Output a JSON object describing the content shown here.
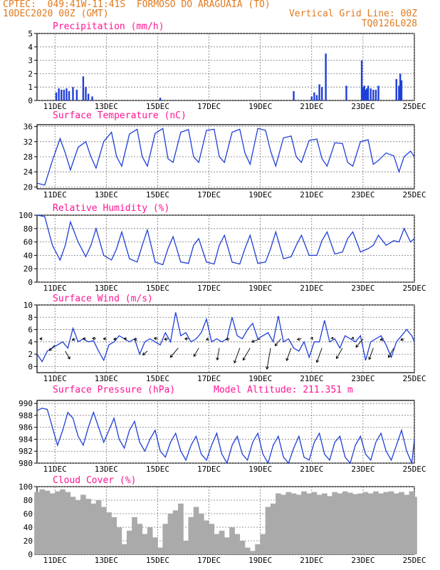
{
  "header": {
    "line1": "CPTEC:  049:41W-11:41S  FORMOSO DO ARAGUAIA (TO)",
    "line2": "10DEC2020 00Z (GMT)",
    "grid_note": "Vertical Grid Line: 00Z",
    "run_id": "TQ0126L028"
  },
  "x_tick_labels": [
    "11DEC",
    "13DEC",
    "15DEC",
    "17DEC",
    "19DEC",
    "21DEC",
    "23DEC",
    "25DEC"
  ],
  "x_tick_days": [
    1,
    3,
    5,
    7,
    9,
    11,
    13,
    15
  ],
  "x_range_days": [
    0.3,
    15
  ],
  "colors": {
    "title": "#ff1493",
    "header": "#e07a1f",
    "line": "#1f3fd8",
    "bar": "#1f3fd8",
    "cloud": "#aaaaaa",
    "axis": "#000000",
    "grid": "#777777"
  },
  "chart_data": [
    {
      "id": "precip",
      "type": "bar",
      "title": "Precipitation (mm/h)",
      "ylim": [
        0,
        5
      ],
      "yticks": [
        0,
        1,
        2,
        3,
        4,
        5
      ],
      "x_units": "days since 10DEC2020 00Z",
      "x": [
        1.05,
        1.15,
        1.25,
        1.35,
        1.45,
        1.55,
        1.7,
        1.85,
        2.1,
        2.2,
        2.3,
        2.45,
        5.1,
        10.3,
        11.0,
        11.1,
        11.2,
        11.3,
        11.4,
        11.55,
        12.35,
        12.95,
        13.0,
        13.05,
        13.1,
        13.15,
        13.2,
        13.3,
        13.4,
        13.5,
        13.6,
        14.3,
        14.4,
        14.45,
        14.5
      ],
      "values": [
        0.6,
        0.9,
        0.8,
        0.8,
        0.9,
        0.7,
        1.0,
        0.8,
        1.8,
        1.0,
        0.5,
        0.3,
        0.2,
        0.7,
        0.3,
        0.6,
        0.4,
        1.2,
        1.0,
        3.5,
        1.1,
        3.0,
        1.0,
        1.1,
        0.8,
        0.9,
        1.1,
        0.9,
        0.8,
        0.8,
        1.1,
        1.6,
        1.1,
        2.0,
        1.5
      ]
    },
    {
      "id": "temp",
      "type": "line",
      "title": "Surface Temperature (nC)",
      "ylim": [
        19.5,
        36.5
      ],
      "yticks": [
        20,
        24,
        28,
        32,
        36
      ],
      "x_units": "days since 10DEC2020 00Z",
      "x": [
        0.3,
        0.6,
        0.9,
        1.2,
        1.4,
        1.6,
        1.9,
        2.2,
        2.4,
        2.6,
        2.9,
        3.2,
        3.4,
        3.6,
        3.9,
        4.2,
        4.4,
        4.6,
        4.9,
        5.2,
        5.4,
        5.6,
        5.9,
        6.2,
        6.4,
        6.6,
        6.9,
        7.2,
        7.4,
        7.6,
        7.9,
        8.2,
        8.4,
        8.6,
        8.9,
        9.2,
        9.4,
        9.6,
        9.9,
        10.2,
        10.4,
        10.6,
        10.9,
        11.2,
        11.4,
        11.6,
        11.9,
        12.2,
        12.4,
        12.6,
        12.9,
        13.2,
        13.4,
        13.6,
        13.9,
        14.2,
        14.4,
        14.6,
        14.85,
        15.0
      ],
      "values": [
        21,
        20.5,
        27,
        32.8,
        29,
        24.5,
        30.5,
        32,
        28,
        25,
        32,
        34.5,
        28,
        25.5,
        34,
        35.3,
        28,
        25.5,
        34.2,
        35.5,
        27.5,
        26.5,
        34.5,
        35.2,
        28,
        26.5,
        35,
        35.3,
        28,
        26.5,
        34.5,
        35.3,
        29,
        26,
        35.5,
        35,
        29.5,
        25.5,
        33,
        33.5,
        28,
        26.5,
        32.3,
        32.7,
        27.5,
        25.5,
        31.7,
        31.5,
        26.5,
        25.5,
        32,
        32.5,
        26,
        27,
        29,
        28.2,
        24,
        28,
        29.5,
        28
      ]
    },
    {
      "id": "rh",
      "type": "line",
      "title": "Relative Humidity (%)",
      "ylim": [
        0,
        100
      ],
      "yticks": [
        0,
        20,
        40,
        60,
        80,
        100
      ],
      "x_units": "days since 10DEC2020 00Z",
      "x": [
        0.3,
        0.6,
        0.9,
        1.2,
        1.4,
        1.6,
        1.9,
        2.2,
        2.4,
        2.6,
        2.9,
        3.2,
        3.4,
        3.6,
        3.9,
        4.2,
        4.4,
        4.6,
        4.9,
        5.2,
        5.4,
        5.6,
        5.9,
        6.2,
        6.4,
        6.6,
        6.9,
        7.2,
        7.4,
        7.6,
        7.9,
        8.2,
        8.4,
        8.6,
        8.9,
        9.2,
        9.4,
        9.6,
        9.9,
        10.2,
        10.4,
        10.6,
        10.9,
        11.2,
        11.4,
        11.6,
        11.9,
        12.2,
        12.4,
        12.6,
        12.9,
        13.2,
        13.4,
        13.6,
        13.9,
        14.2,
        14.4,
        14.6,
        14.85,
        15.0
      ],
      "values": [
        100,
        98,
        55,
        33,
        55,
        90,
        60,
        38,
        55,
        80,
        40,
        33,
        50,
        75,
        35,
        30,
        55,
        78,
        30,
        26,
        50,
        68,
        30,
        28,
        55,
        65,
        30,
        27,
        55,
        70,
        30,
        27,
        50,
        70,
        28,
        30,
        50,
        75,
        35,
        38,
        55,
        70,
        40,
        40,
        62,
        75,
        42,
        45,
        65,
        75,
        45,
        50,
        55,
        70,
        55,
        62,
        60,
        80,
        60,
        65
      ]
    },
    {
      "id": "wind",
      "type": "line",
      "title": "Surface Wind (m/s)",
      "ylim": [
        -1,
        10
      ],
      "yticks": [
        0,
        2,
        4,
        6,
        8,
        10
      ],
      "x_units": "days since 10DEC2020 00Z",
      "x": [
        0.3,
        0.5,
        0.7,
        0.9,
        1.1,
        1.3,
        1.5,
        1.7,
        1.9,
        2.1,
        2.3,
        2.5,
        2.7,
        2.9,
        3.1,
        3.3,
        3.5,
        3.7,
        3.9,
        4.1,
        4.3,
        4.5,
        4.7,
        4.9,
        5.1,
        5.3,
        5.5,
        5.7,
        5.9,
        6.1,
        6.3,
        6.5,
        6.7,
        6.9,
        7.1,
        7.3,
        7.5,
        7.7,
        7.9,
        8.1,
        8.3,
        8.5,
        8.7,
        8.9,
        9.1,
        9.3,
        9.5,
        9.7,
        9.9,
        10.1,
        10.3,
        10.5,
        10.7,
        10.9,
        11.1,
        11.3,
        11.5,
        11.7,
        11.9,
        12.1,
        12.3,
        12.5,
        12.7,
        12.9,
        13.1,
        13.3,
        13.5,
        13.7,
        13.9,
        14.1,
        14.3,
        14.5,
        14.7,
        14.9,
        15.0
      ],
      "values": [
        2,
        0.8,
        2.5,
        3,
        3.5,
        4,
        3,
        6.2,
        4,
        4.5,
        4,
        4.2,
        2.5,
        1,
        3.5,
        4,
        5,
        4.5,
        4,
        4.5,
        2,
        4,
        4.5,
        4,
        3.5,
        5.5,
        4,
        8.8,
        5,
        5.5,
        4,
        4.5,
        5.5,
        7.7,
        4,
        4.5,
        4,
        4.5,
        8,
        5,
        4.5,
        6,
        7,
        4.5,
        5,
        5.5,
        4,
        8.2,
        4,
        4.5,
        3,
        2.5,
        4,
        1.5,
        4,
        4,
        7.5,
        4,
        4.5,
        3,
        5,
        4.5,
        4,
        5,
        1,
        4,
        4.5,
        5,
        3.5,
        1.5,
        4,
        5,
        6,
        5,
        4
      ]
    },
    {
      "id": "pres",
      "type": "line",
      "title": "Surface Pressure (hPa)",
      "annotation": "Model Altitude: 211.351 m",
      "ylim": [
        980,
        990.5
      ],
      "yticks": [
        980,
        982,
        984,
        986,
        988,
        990
      ],
      "x_units": "days since 10DEC2020 00Z",
      "x": [
        0.3,
        0.5,
        0.7,
        0.9,
        1.1,
        1.3,
        1.5,
        1.7,
        1.9,
        2.1,
        2.3,
        2.5,
        2.7,
        2.9,
        3.1,
        3.3,
        3.5,
        3.7,
        3.9,
        4.1,
        4.3,
        4.5,
        4.7,
        4.9,
        5.1,
        5.3,
        5.5,
        5.7,
        5.9,
        6.1,
        6.3,
        6.5,
        6.7,
        6.9,
        7.1,
        7.3,
        7.5,
        7.7,
        7.9,
        8.1,
        8.3,
        8.5,
        8.7,
        8.9,
        9.1,
        9.3,
        9.5,
        9.7,
        9.9,
        10.1,
        10.3,
        10.5,
        10.7,
        10.9,
        11.1,
        11.3,
        11.5,
        11.7,
        11.9,
        12.1,
        12.3,
        12.5,
        12.7,
        12.9,
        13.1,
        13.3,
        13.5,
        13.7,
        13.9,
        14.1,
        14.3,
        14.5,
        14.7,
        14.9,
        15.0
      ],
      "values": [
        988.8,
        989.2,
        989,
        986,
        983,
        985.5,
        988.5,
        987.5,
        984.5,
        983,
        986,
        988.5,
        986,
        983.5,
        985.5,
        987.5,
        984,
        982.5,
        985.5,
        987,
        983.5,
        982,
        984,
        985.5,
        982,
        981,
        983.5,
        985,
        982,
        980.5,
        983,
        984.5,
        981.5,
        980.5,
        983,
        985,
        981.5,
        980,
        983,
        984.5,
        981.5,
        980.5,
        983.5,
        985,
        981.5,
        980,
        983,
        984.5,
        981,
        980,
        982.5,
        984.5,
        981,
        980.5,
        983.5,
        985,
        981.5,
        980.5,
        983.5,
        984.5,
        981,
        980,
        983,
        984.5,
        981.5,
        980.5,
        983.5,
        985,
        982,
        980.5,
        983,
        985.5,
        982,
        980,
        984
      ]
    },
    {
      "id": "cloud",
      "type": "bar",
      "title": "Cloud Cover (%)",
      "ylim": [
        0,
        100
      ],
      "yticks": [
        0,
        20,
        40,
        60,
        80,
        100
      ],
      "x_units": "days since 10DEC2020 00Z",
      "x": [
        0.3,
        0.5,
        0.7,
        0.9,
        1.1,
        1.3,
        1.5,
        1.7,
        1.9,
        2.1,
        2.3,
        2.5,
        2.7,
        2.9,
        3.1,
        3.3,
        3.5,
        3.7,
        3.9,
        4.1,
        4.3,
        4.5,
        4.7,
        4.9,
        5.1,
        5.3,
        5.5,
        5.7,
        5.9,
        6.1,
        6.3,
        6.5,
        6.7,
        6.9,
        7.1,
        7.3,
        7.5,
        7.7,
        7.9,
        8.1,
        8.3,
        8.5,
        8.7,
        8.9,
        9.1,
        9.3,
        9.5,
        9.7,
        9.9,
        10.1,
        10.3,
        10.5,
        10.7,
        10.9,
        11.1,
        11.3,
        11.5,
        11.7,
        11.9,
        12.1,
        12.3,
        12.5,
        12.7,
        12.9,
        13.1,
        13.3,
        13.5,
        13.7,
        13.9,
        14.1,
        14.3,
        14.5,
        14.7,
        14.9,
        15.0
      ],
      "values": [
        92,
        96,
        94,
        90,
        93,
        96,
        92,
        85,
        80,
        88,
        82,
        75,
        80,
        70,
        62,
        55,
        40,
        15,
        35,
        55,
        45,
        30,
        40,
        25,
        10,
        45,
        60,
        65,
        75,
        20,
        55,
        70,
        60,
        50,
        45,
        30,
        35,
        25,
        40,
        30,
        20,
        10,
        5,
        15,
        30,
        70,
        75,
        90,
        88,
        92,
        90,
        88,
        93,
        90,
        92,
        88,
        90,
        86,
        92,
        90,
        93,
        91,
        89,
        90,
        92,
        90,
        93,
        90,
        92,
        93,
        90,
        92,
        88,
        93,
        85
      ]
    },
    {
      "id": "wind_dir",
      "type": "scatter",
      "title": "",
      "x_units": "days since 10DEC2020 00Z",
      "description": "wind direction vectors plotted along Surface Wind panel",
      "x": [
        0.5,
        1.0,
        1.4,
        1.8,
        2.2,
        2.6,
        3.0,
        3.4,
        3.8,
        4.2,
        4.6,
        5.0,
        5.4,
        5.8,
        6.2,
        6.6,
        7.0,
        7.4,
        7.8,
        8.2,
        8.6,
        9.0,
        9.4,
        9.8,
        10.2,
        10.6,
        11.0,
        11.4,
        11.8,
        12.2,
        12.6,
        13.0,
        13.4,
        13.8,
        14.2,
        14.6
      ],
      "y": [
        4.5,
        3.5,
        2.5,
        4.5,
        4.5,
        4.5,
        4.5,
        4.5,
        4.5,
        4.5,
        2.5,
        4.5,
        4.5,
        3,
        4.5,
        3,
        4.5,
        3,
        4.5,
        3,
        3,
        4.5,
        3,
        4.5,
        3,
        4.5,
        4.5,
        3,
        4.5,
        3,
        4.5,
        4.5,
        3,
        4.5,
        3,
        4.5
      ],
      "dir_deg": [
        180,
        225,
        300,
        200,
        180,
        170,
        180,
        190,
        180,
        200,
        220,
        170,
        190,
        230,
        180,
        240,
        200,
        260,
        190,
        250,
        240,
        200,
        260,
        230,
        250,
        190,
        60,
        250,
        70,
        240,
        80,
        230,
        250,
        200,
        240,
        200
      ],
      "len": [
        0.4,
        1.3,
        1.5,
        0.6,
        0.5,
        0.6,
        0.5,
        0.5,
        0.5,
        0.5,
        1.0,
        0.6,
        0.6,
        2.0,
        0.6,
        1.6,
        0.5,
        2.0,
        0.6,
        2.6,
        2.3,
        1.5,
        3.5,
        1.5,
        2.2,
        0.7,
        0.3,
        2.5,
        0.3,
        2.0,
        0.3,
        1.8,
        2.0,
        0.6,
        1.8,
        0.6
      ]
    }
  ]
}
